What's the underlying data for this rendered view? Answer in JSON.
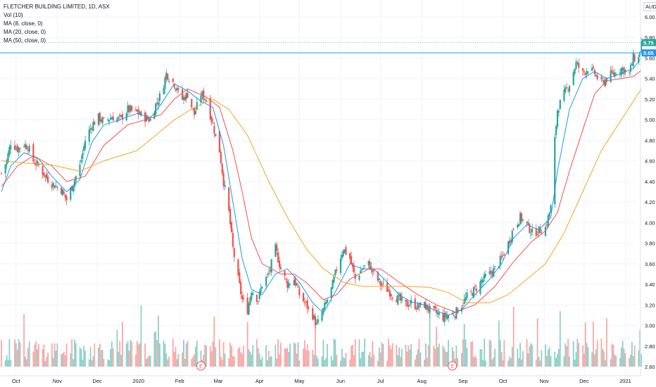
{
  "header": {
    "symbol_line": "FLETCHER BUILDING LIMITED, 1D, ASX",
    "indicators": [
      "Vol (10)",
      "MA (8, close, 0)",
      "MA (20, close, 0)",
      "MA (50, close, 0)"
    ],
    "currency": "AUD"
  },
  "price_tags": {
    "last": "5.75",
    "line": "5.65"
  },
  "earnings_marker": "E",
  "colors": {
    "up": "#26a69a",
    "down": "#ef5350",
    "vol_up": "#8fd0c9",
    "vol_down": "#f7a9a7",
    "ma8": "#2196f3",
    "ma20": "#ef5350",
    "ma50": "#f5a623",
    "hline": "#2196f3",
    "tag_last": "#26a69a",
    "tag_line": "#2196f3",
    "grid": "#f0f3fa"
  },
  "chart_data": {
    "type": "candlestick",
    "title": "FLETCHER BUILDING LIMITED, 1D, ASX",
    "ylabel": "AUD",
    "ylim": [
      2.5,
      6.1
    ],
    "y_ticks": [
      "6.00",
      "5.80",
      "5.60",
      "5.40",
      "5.20",
      "5.00",
      "4.80",
      "4.60",
      "4.40",
      "4.20",
      "4.00",
      "3.80",
      "3.60",
      "3.40",
      "3.20",
      "3.00",
      "2.80",
      "2.60"
    ],
    "x_ticks": [
      "Oct",
      "Nov",
      "Dec",
      "2020",
      "Feb",
      "Mar",
      "Apr",
      "May",
      "Jun",
      "Jul",
      "Aug",
      "Sep",
      "Oct",
      "Nov",
      "Dec",
      "2021"
    ],
    "close_path": [
      [
        "2019-09-20",
        4.48
      ],
      [
        "2019-09-24",
        4.6
      ],
      [
        "2019-09-27",
        4.78
      ],
      [
        "2019-10-02",
        4.72
      ],
      [
        "2019-10-07",
        4.76
      ],
      [
        "2019-10-10",
        4.74
      ],
      [
        "2019-10-14",
        4.6
      ],
      [
        "2019-10-18",
        4.55
      ],
      [
        "2019-10-23",
        4.45
      ],
      [
        "2019-10-28",
        4.38
      ],
      [
        "2019-11-04",
        4.32
      ],
      [
        "2019-11-08",
        4.22
      ],
      [
        "2019-11-12",
        4.35
      ],
      [
        "2019-11-18",
        4.55
      ],
      [
        "2019-11-22",
        4.8
      ],
      [
        "2019-11-27",
        4.95
      ],
      [
        "2019-12-02",
        5.02
      ],
      [
        "2019-12-06",
        4.98
      ],
      [
        "2019-12-12",
        5.03
      ],
      [
        "2019-12-18",
        5.0
      ],
      [
        "2019-12-24",
        5.1
      ],
      [
        "2019-12-31",
        5.07
      ],
      [
        "2020-01-06",
        5.02
      ],
      [
        "2020-01-10",
        5.0
      ],
      [
        "2020-01-14",
        5.15
      ],
      [
        "2020-01-18",
        5.25
      ],
      [
        "2020-01-22",
        5.45
      ],
      [
        "2020-01-28",
        5.35
      ],
      [
        "2020-02-03",
        5.2
      ],
      [
        "2020-02-07",
        5.25
      ],
      [
        "2020-02-12",
        5.05
      ],
      [
        "2020-02-17",
        5.25
      ],
      [
        "2020-02-21",
        5.2
      ],
      [
        "2020-02-26",
        4.95
      ],
      [
        "2020-03-02",
        4.7
      ],
      [
        "2020-03-05",
        4.4
      ],
      [
        "2020-03-09",
        4.1
      ],
      [
        "2020-03-12",
        3.75
      ],
      [
        "2020-03-16",
        3.45
      ],
      [
        "2020-03-19",
        3.25
      ],
      [
        "2020-03-23",
        3.15
      ],
      [
        "2020-03-26",
        3.35
      ],
      [
        "2020-03-31",
        3.25
      ],
      [
        "2020-04-03",
        3.4
      ],
      [
        "2020-04-08",
        3.5
      ],
      [
        "2020-04-13",
        3.75
      ],
      [
        "2020-04-17",
        3.55
      ],
      [
        "2020-04-22",
        3.4
      ],
      [
        "2020-04-27",
        3.45
      ],
      [
        "2020-05-01",
        3.3
      ],
      [
        "2020-05-06",
        3.2
      ],
      [
        "2020-05-11",
        3.1
      ],
      [
        "2020-05-14",
        3.0
      ],
      [
        "2020-05-19",
        3.15
      ],
      [
        "2020-05-25",
        3.35
      ],
      [
        "2020-05-29",
        3.55
      ],
      [
        "2020-06-03",
        3.75
      ],
      [
        "2020-06-08",
        3.65
      ],
      [
        "2020-06-12",
        3.45
      ],
      [
        "2020-06-17",
        3.55
      ],
      [
        "2020-06-22",
        3.6
      ],
      [
        "2020-06-26",
        3.5
      ],
      [
        "2020-07-01",
        3.4
      ],
      [
        "2020-07-06",
        3.35
      ],
      [
        "2020-07-10",
        3.3
      ],
      [
        "2020-07-15",
        3.25
      ],
      [
        "2020-07-20",
        3.2
      ],
      [
        "2020-07-24",
        3.22
      ],
      [
        "2020-07-29",
        3.18
      ],
      [
        "2020-08-03",
        3.2
      ],
      [
        "2020-08-07",
        3.15
      ],
      [
        "2020-08-12",
        3.12
      ],
      [
        "2020-08-17",
        3.08
      ],
      [
        "2020-08-21",
        3.1
      ],
      [
        "2020-08-26",
        3.12
      ],
      [
        "2020-08-31",
        3.2
      ],
      [
        "2020-09-04",
        3.28
      ],
      [
        "2020-09-10",
        3.35
      ],
      [
        "2020-09-16",
        3.45
      ],
      [
        "2020-09-21",
        3.5
      ],
      [
        "2020-09-25",
        3.55
      ],
      [
        "2020-09-30",
        3.65
      ],
      [
        "2020-10-05",
        3.8
      ],
      [
        "2020-10-09",
        3.95
      ],
      [
        "2020-10-14",
        4.05
      ],
      [
        "2020-10-19",
        3.98
      ],
      [
        "2020-10-23",
        3.9
      ],
      [
        "2020-10-28",
        3.92
      ],
      [
        "2020-11-02",
        3.95
      ],
      [
        "2020-11-06",
        4.15
      ],
      [
        "2020-11-09",
        4.8
      ],
      [
        "2020-11-11",
        5.1
      ],
      [
        "2020-11-16",
        5.25
      ],
      [
        "2020-11-20",
        5.35
      ],
      [
        "2020-11-25",
        5.55
      ],
      [
        "2020-11-30",
        5.45
      ],
      [
        "2020-12-04",
        5.5
      ],
      [
        "2020-12-09",
        5.45
      ],
      [
        "2020-12-14",
        5.35
      ],
      [
        "2020-12-18",
        5.4
      ],
      [
        "2020-12-23",
        5.45
      ],
      [
        "2020-12-29",
        5.5
      ],
      [
        "2021-01-04",
        5.45
      ],
      [
        "2021-01-07",
        5.6
      ],
      [
        "2021-01-11",
        5.6
      ],
      [
        "2021-01-13",
        5.75
      ]
    ],
    "series": [
      {
        "name": "MA (8, close, 0)",
        "values": [
          [
            "2019-09-20",
            4.3
          ],
          [
            "2019-09-27",
            4.55
          ],
          [
            "2019-10-07",
            4.68
          ],
          [
            "2019-10-18",
            4.62
          ],
          [
            "2019-10-28",
            4.45
          ],
          [
            "2019-11-08",
            4.3
          ],
          [
            "2019-11-18",
            4.42
          ],
          [
            "2019-11-27",
            4.78
          ],
          [
            "2019-12-06",
            4.95
          ],
          [
            "2019-12-18",
            5.0
          ],
          [
            "2019-12-31",
            5.06
          ],
          [
            "2020-01-10",
            5.02
          ],
          [
            "2020-01-18",
            5.15
          ],
          [
            "2020-01-28",
            5.35
          ],
          [
            "2020-02-07",
            5.28
          ],
          [
            "2020-02-17",
            5.18
          ],
          [
            "2020-02-26",
            5.12
          ],
          [
            "2020-03-05",
            4.75
          ],
          [
            "2020-03-12",
            4.2
          ],
          [
            "2020-03-19",
            3.65
          ],
          [
            "2020-03-26",
            3.35
          ],
          [
            "2020-04-03",
            3.3
          ],
          [
            "2020-04-13",
            3.5
          ],
          [
            "2020-04-22",
            3.55
          ],
          [
            "2020-05-01",
            3.42
          ],
          [
            "2020-05-11",
            3.22
          ],
          [
            "2020-05-19",
            3.12
          ],
          [
            "2020-05-29",
            3.35
          ],
          [
            "2020-06-08",
            3.6
          ],
          [
            "2020-06-17",
            3.55
          ],
          [
            "2020-06-26",
            3.55
          ],
          [
            "2020-07-06",
            3.42
          ],
          [
            "2020-07-15",
            3.3
          ],
          [
            "2020-07-24",
            3.23
          ],
          [
            "2020-08-03",
            3.2
          ],
          [
            "2020-08-12",
            3.14
          ],
          [
            "2020-08-21",
            3.1
          ],
          [
            "2020-08-31",
            3.15
          ],
          [
            "2020-09-10",
            3.3
          ],
          [
            "2020-09-21",
            3.45
          ],
          [
            "2020-09-30",
            3.6
          ],
          [
            "2020-10-09",
            3.85
          ],
          [
            "2020-10-19",
            3.98
          ],
          [
            "2020-10-28",
            3.93
          ],
          [
            "2020-11-06",
            4.05
          ],
          [
            "2020-11-11",
            4.5
          ],
          [
            "2020-11-20",
            5.1
          ],
          [
            "2020-11-30",
            5.4
          ],
          [
            "2020-12-09",
            5.47
          ],
          [
            "2020-12-18",
            5.4
          ],
          [
            "2020-12-29",
            5.45
          ],
          [
            "2021-01-07",
            5.5
          ],
          [
            "2021-01-13",
            5.6
          ]
        ]
      },
      {
        "name": "MA (20, close, 0)",
        "values": [
          [
            "2019-09-20",
            4.35
          ],
          [
            "2019-10-02",
            4.55
          ],
          [
            "2019-10-14",
            4.65
          ],
          [
            "2019-10-28",
            4.55
          ],
          [
            "2019-11-08",
            4.4
          ],
          [
            "2019-11-22",
            4.45
          ],
          [
            "2019-12-06",
            4.75
          ],
          [
            "2019-12-24",
            4.95
          ],
          [
            "2020-01-06",
            5.0
          ],
          [
            "2020-01-18",
            5.05
          ],
          [
            "2020-01-28",
            5.2
          ],
          [
            "2020-02-07",
            5.3
          ],
          [
            "2020-02-21",
            5.22
          ],
          [
            "2020-03-02",
            5.12
          ],
          [
            "2020-03-12",
            4.7
          ],
          [
            "2020-03-19",
            4.3
          ],
          [
            "2020-03-26",
            3.85
          ],
          [
            "2020-04-03",
            3.6
          ],
          [
            "2020-04-17",
            3.5
          ],
          [
            "2020-04-27",
            3.5
          ],
          [
            "2020-05-06",
            3.42
          ],
          [
            "2020-05-19",
            3.25
          ],
          [
            "2020-05-29",
            3.3
          ],
          [
            "2020-06-08",
            3.45
          ],
          [
            "2020-06-22",
            3.55
          ],
          [
            "2020-07-01",
            3.55
          ],
          [
            "2020-07-15",
            3.42
          ],
          [
            "2020-07-29",
            3.3
          ],
          [
            "2020-08-12",
            3.2
          ],
          [
            "2020-08-26",
            3.13
          ],
          [
            "2020-09-10",
            3.2
          ],
          [
            "2020-09-25",
            3.38
          ],
          [
            "2020-10-09",
            3.62
          ],
          [
            "2020-10-23",
            3.82
          ],
          [
            "2020-11-02",
            3.92
          ],
          [
            "2020-11-11",
            4.1
          ],
          [
            "2020-11-20",
            4.5
          ],
          [
            "2020-11-30",
            4.9
          ],
          [
            "2020-12-09",
            5.25
          ],
          [
            "2020-12-18",
            5.38
          ],
          [
            "2020-12-29",
            5.4
          ],
          [
            "2021-01-07",
            5.42
          ],
          [
            "2021-01-13",
            5.48
          ]
        ]
      },
      {
        "name": "MA (50, close, 0)",
        "values": [
          [
            "2019-09-20",
            4.6
          ],
          [
            "2019-10-07",
            4.58
          ],
          [
            "2019-10-28",
            4.56
          ],
          [
            "2019-11-18",
            4.5
          ],
          [
            "2019-12-06",
            4.6
          ],
          [
            "2019-12-31",
            4.7
          ],
          [
            "2020-01-14",
            4.85
          ],
          [
            "2020-01-28",
            5.0
          ],
          [
            "2020-02-12",
            5.12
          ],
          [
            "2020-02-26",
            5.2
          ],
          [
            "2020-03-09",
            5.1
          ],
          [
            "2020-03-23",
            4.85
          ],
          [
            "2020-04-08",
            4.4
          ],
          [
            "2020-04-22",
            4.05
          ],
          [
            "2020-05-06",
            3.75
          ],
          [
            "2020-05-19",
            3.55
          ],
          [
            "2020-06-03",
            3.42
          ],
          [
            "2020-06-17",
            3.38
          ],
          [
            "2020-07-01",
            3.38
          ],
          [
            "2020-07-20",
            3.38
          ],
          [
            "2020-08-07",
            3.37
          ],
          [
            "2020-08-21",
            3.32
          ],
          [
            "2020-09-04",
            3.22
          ],
          [
            "2020-09-21",
            3.22
          ],
          [
            "2020-10-05",
            3.3
          ],
          [
            "2020-10-19",
            3.45
          ],
          [
            "2020-11-02",
            3.6
          ],
          [
            "2020-11-16",
            3.9
          ],
          [
            "2020-11-30",
            4.3
          ],
          [
            "2020-12-14",
            4.7
          ],
          [
            "2020-12-29",
            5.0
          ],
          [
            "2021-01-13",
            5.3
          ]
        ]
      }
    ],
    "volume_baseline": 2.6,
    "volume_scale_ymax": 3.45
  }
}
